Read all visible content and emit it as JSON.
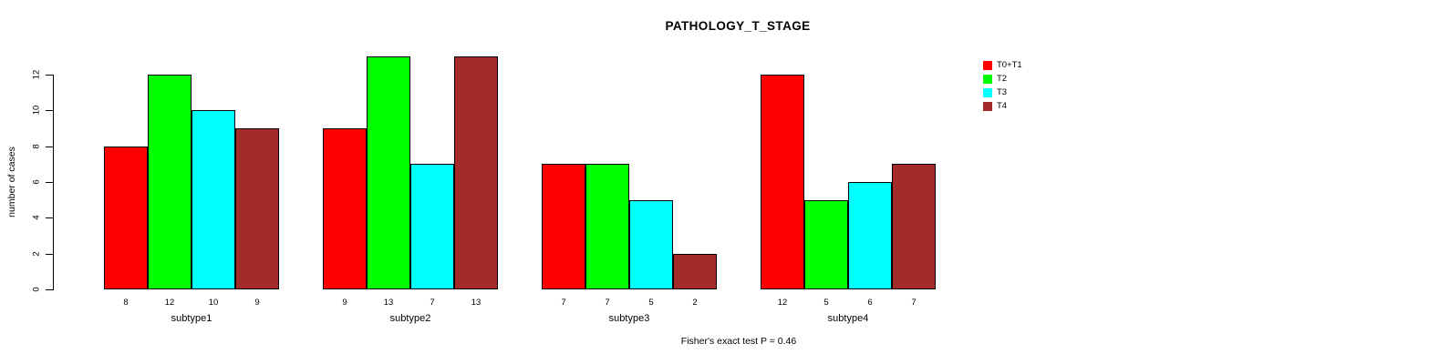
{
  "figure": {
    "title": "PATHOLOGY_T_STAGE",
    "footnote": "Fisher's exact test P = 0.46",
    "ylabel": "number of cases"
  },
  "chart_data": {
    "type": "bar",
    "title": "PATHOLOGY_T_STAGE",
    "subtitle": "Fisher's exact test P = 0.46",
    "xlabel": "",
    "ylabel": "number of cases",
    "categories": [
      "subtype1",
      "subtype2",
      "subtype3",
      "subtype4"
    ],
    "series": [
      {
        "name": "T0+T1",
        "color": "#ff0000",
        "values": [
          8,
          9,
          7,
          12
        ]
      },
      {
        "name": "T2",
        "color": "#00ff00",
        "values": [
          12,
          13,
          7,
          5
        ]
      },
      {
        "name": "T3",
        "color": "#00ffff",
        "values": [
          10,
          7,
          5,
          6
        ]
      },
      {
        "name": "T4",
        "color": "#a52a2a",
        "values": [
          9,
          13,
          2,
          7
        ]
      }
    ],
    "bar_value_labels_shown": true,
    "yticks": [
      0,
      2,
      4,
      6,
      8,
      10,
      12
    ],
    "ylim": [
      0,
      13.65
    ],
    "grid": false,
    "legend_position": "top-right",
    "background_color": "#ffffff",
    "text_color": "#000000"
  }
}
